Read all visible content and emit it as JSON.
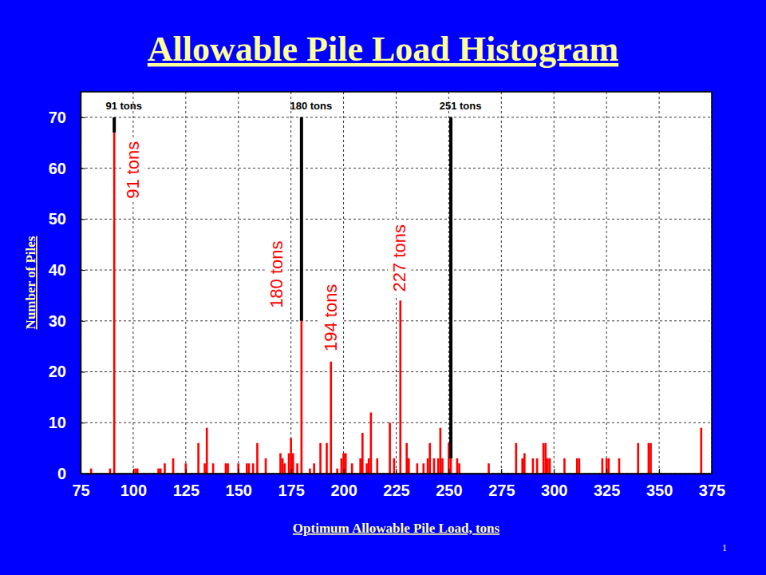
{
  "chart_data": {
    "type": "bar",
    "title": "Allowable Pile Load Histogram",
    "x_label": "Optimum Allowable Pile Load, tons",
    "y_label": "Number of Piles",
    "x": [
      80,
      89,
      91,
      101,
      102,
      112,
      113,
      115,
      119,
      125,
      131,
      134,
      135,
      138,
      144,
      145,
      150,
      154,
      155,
      157,
      159,
      163,
      170,
      171,
      172,
      174,
      175,
      176,
      178,
      180,
      184,
      186,
      189,
      192,
      194,
      197,
      199,
      200,
      201,
      204,
      208,
      209,
      211,
      212,
      213,
      216,
      222,
      224,
      227,
      230,
      231,
      235,
      238,
      240,
      241,
      243,
      245,
      246,
      247,
      250,
      251,
      254,
      255,
      269,
      282,
      285,
      286,
      290,
      292,
      295,
      296,
      297,
      298,
      305,
      311,
      312,
      323,
      325,
      326,
      331,
      340,
      345,
      346,
      370
    ],
    "values": [
      1,
      1,
      67,
      1,
      1,
      1,
      1,
      2,
      3,
      2,
      6,
      2,
      9,
      2,
      2,
      2,
      2,
      2,
      2,
      2,
      6,
      3,
      4,
      3,
      2,
      4,
      7,
      4,
      2,
      30,
      1,
      2,
      6,
      6,
      22,
      1,
      3,
      4,
      4,
      2,
      3,
      8,
      2,
      3,
      12,
      3,
      10,
      3,
      34,
      6,
      3,
      2,
      2,
      3,
      6,
      3,
      3,
      9,
      3,
      6,
      3,
      3,
      2,
      2,
      6,
      3,
      4,
      3,
      3,
      6,
      6,
      3,
      3,
      3,
      3,
      3,
      3,
      3,
      3,
      3,
      6,
      6,
      6,
      9
    ],
    "color": "#ff0000",
    "xlim": [
      75,
      375
    ],
    "ylim": [
      0,
      75
    ],
    "xticks": [
      75,
      100,
      125,
      150,
      175,
      200,
      225,
      250,
      275,
      300,
      325,
      350,
      375
    ],
    "yticks": [
      0,
      10,
      20,
      30,
      40,
      50,
      60,
      70
    ],
    "grid": true,
    "reference_lines": [
      {
        "x": 91,
        "y": 67,
        "label": "91 tons"
      },
      {
        "x": 180,
        "y": 30,
        "label": "180 tons"
      },
      {
        "x": 251,
        "y": 3,
        "label": "251 tons"
      }
    ],
    "annotations": [
      {
        "text": "91 tons",
        "x": 100,
        "y": 54
      },
      {
        "text": "180 tons",
        "x": 168,
        "y": 32.5
      },
      {
        "text": "194 tons",
        "x": 194,
        "y": 24
      },
      {
        "text": "227 tons",
        "x": 226.7,
        "y": 35.7
      }
    ],
    "footer": "1"
  }
}
